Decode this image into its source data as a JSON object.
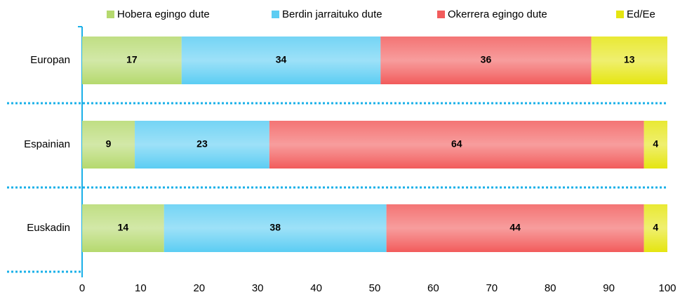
{
  "chart_data": {
    "type": "stacked-bar-horizontal",
    "categories": [
      "Europan",
      "Espainian",
      "Euskadin"
    ],
    "series": [
      {
        "name": "Hobera egingo dute",
        "color": "#b5d96e",
        "values": [
          17,
          9,
          14
        ]
      },
      {
        "name": "Berdin jarraituko dute",
        "color": "#5ccdf3",
        "values": [
          34,
          23,
          38
        ]
      },
      {
        "name": "Okerrera egingo dute",
        "color": "#f25c5c",
        "values": [
          36,
          64,
          44
        ]
      },
      {
        "name": "Ed/Ee",
        "color": "#e5e510",
        "values": [
          13,
          4,
          4
        ]
      }
    ],
    "xlim": [
      0,
      100
    ],
    "xticks": [
      0,
      10,
      20,
      30,
      40,
      50,
      60,
      70,
      80,
      90,
      100
    ],
    "grid": false,
    "legend": "top"
  }
}
